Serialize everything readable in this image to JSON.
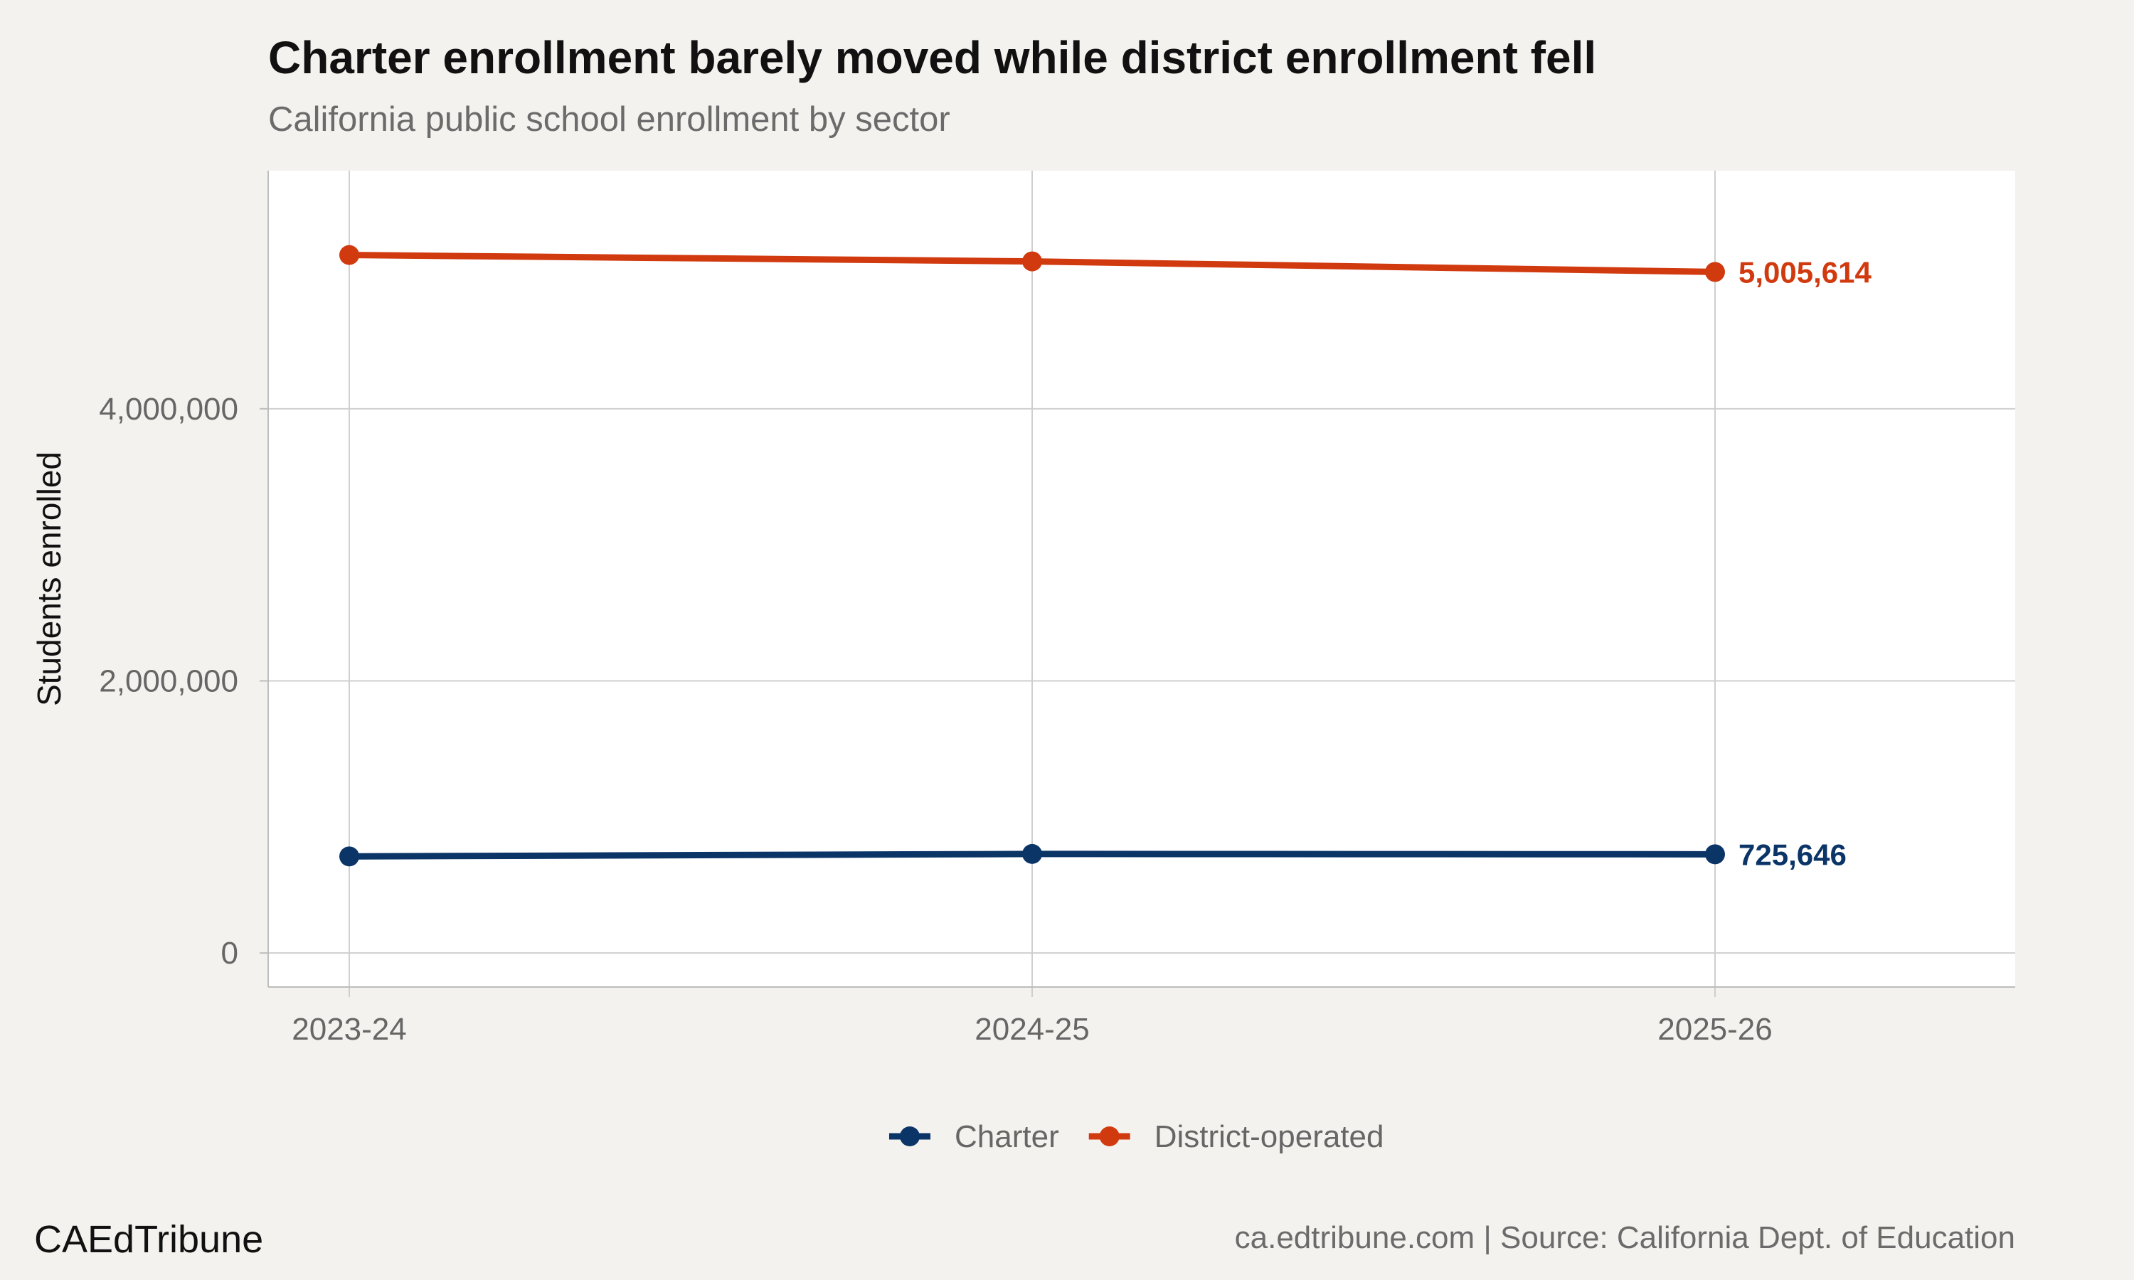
{
  "chart_data": {
    "type": "line",
    "title": "Charter enrollment barely moved while district enrollment fell",
    "subtitle": "California public school enrollment by sector",
    "xlabel": "",
    "ylabel": "Students enrolled",
    "categories": [
      "2023-24",
      "2024-25",
      "2025-26"
    ],
    "ylim": [
      -250000,
      5750000
    ],
    "yticks": [
      0,
      2000000,
      4000000
    ],
    "ytick_labels": [
      "0",
      "2,000,000",
      "4,000,000"
    ],
    "grid": true,
    "legend_position": "bottom",
    "series": [
      {
        "name": "Charter",
        "color": "#0b3467",
        "values": [
          710000,
          728000,
          725646
        ],
        "end_label": "725,646"
      },
      {
        "name": "District-operated",
        "color": "#d13a0f",
        "values": [
          5130000,
          5083000,
          5005614
        ],
        "end_label": "5,005,614"
      }
    ]
  },
  "footer": {
    "brand": "CAEdTribune",
    "source": "ca.edtribune.com | Source: California Dept. of Education"
  }
}
